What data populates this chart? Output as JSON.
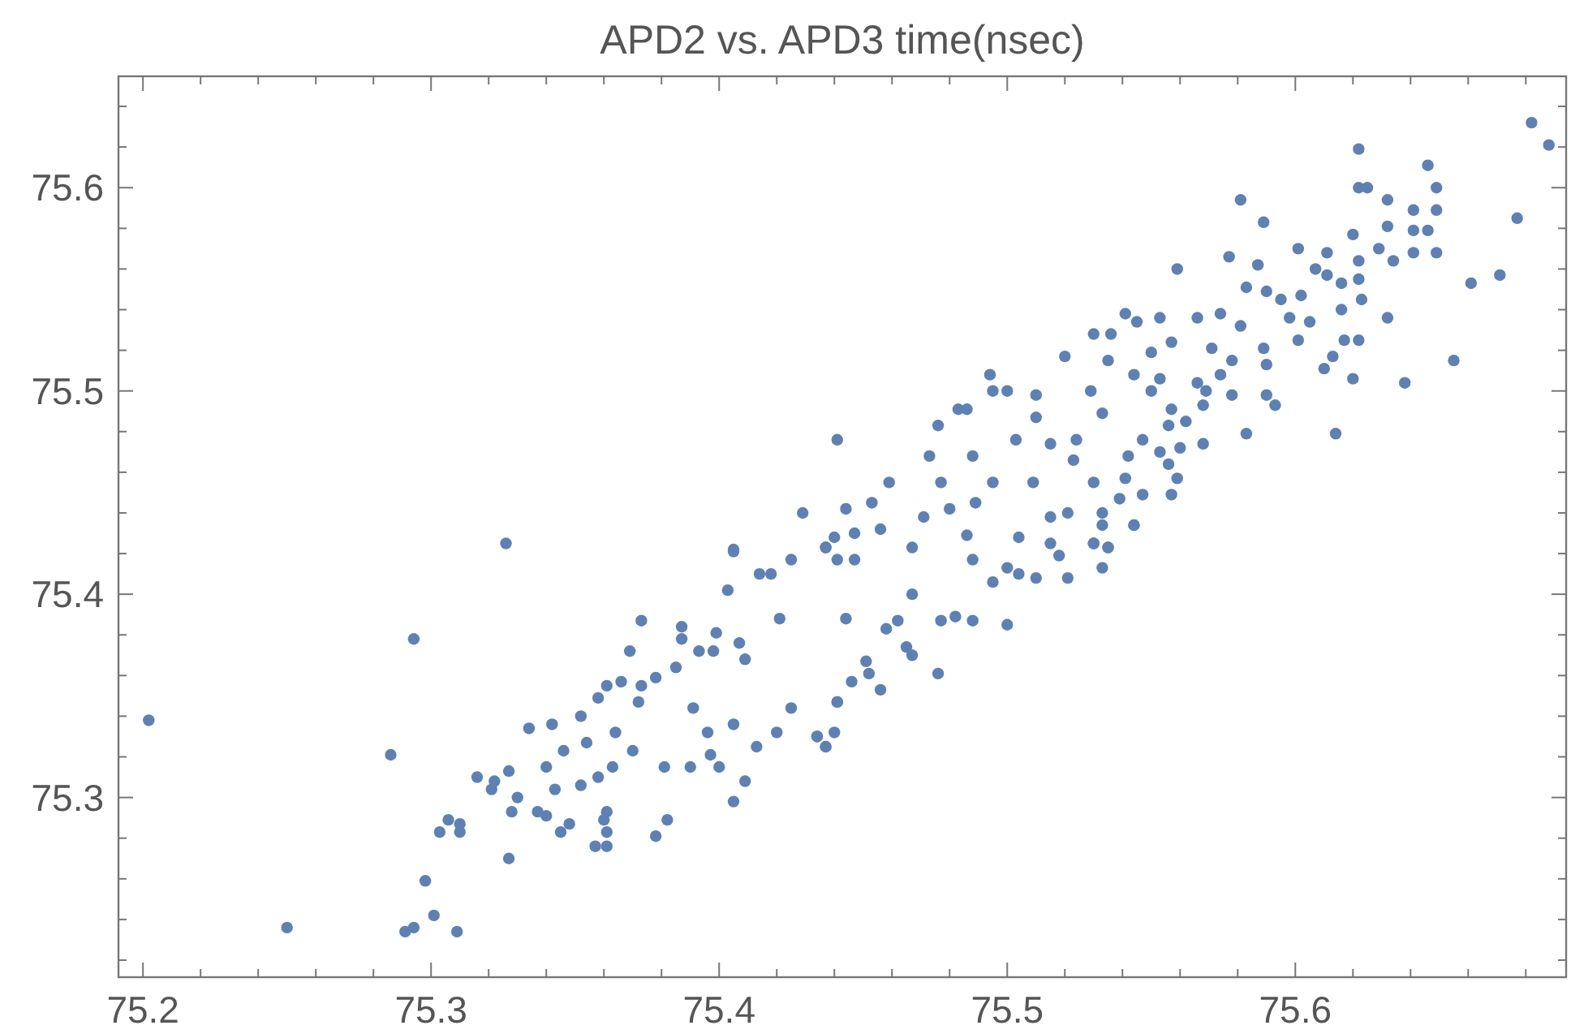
{
  "chart_data": {
    "type": "scatter",
    "title": "APD2 vs. APD3 time(nsec)",
    "xlim": [
      75.1915,
      75.694
    ],
    "ylim": [
      75.2116,
      75.6548
    ],
    "xticks": [
      75.2,
      {
        "value": 75.22,
        "label": null
      },
      {
        "value": 75.24,
        "label": null
      },
      {
        "value": 75.26,
        "label": null
      },
      {
        "value": 75.28,
        "label": null
      },
      75.3,
      {
        "value": 75.32,
        "label": null
      },
      {
        "value": 75.34,
        "label": null
      },
      {
        "value": 75.36,
        "label": null
      },
      {
        "value": 75.38,
        "label": null
      },
      75.4,
      {
        "value": 75.42,
        "label": null
      },
      {
        "value": 75.44,
        "label": null
      },
      {
        "value": 75.46,
        "label": null
      },
      {
        "value": 75.48,
        "label": null
      },
      75.5,
      {
        "value": 75.52,
        "label": null
      },
      {
        "value": 75.54,
        "label": null
      },
      {
        "value": 75.56,
        "label": null
      },
      {
        "value": 75.58,
        "label": null
      },
      75.6,
      {
        "value": 75.62,
        "label": null
      },
      {
        "value": 75.64,
        "label": null
      },
      {
        "value": 75.66,
        "label": null
      },
      {
        "value": 75.68,
        "label": null
      }
    ],
    "yticks": [
      {
        "value": 75.22,
        "label": null
      },
      {
        "value": 75.24,
        "label": null
      },
      {
        "value": 75.26,
        "label": null
      },
      {
        "value": 75.28,
        "label": null
      },
      75.3,
      {
        "value": 75.32,
        "label": null
      },
      {
        "value": 75.34,
        "label": null
      },
      {
        "value": 75.36,
        "label": null
      },
      {
        "value": 75.38,
        "label": null
      },
      75.4,
      {
        "value": 75.42,
        "label": null
      },
      {
        "value": 75.44,
        "label": null
      },
      {
        "value": 75.46,
        "label": null
      },
      {
        "value": 75.48,
        "label": null
      },
      75.5,
      {
        "value": 75.52,
        "label": null
      },
      {
        "value": 75.54,
        "label": null
      },
      {
        "value": 75.56,
        "label": null
      },
      {
        "value": 75.58,
        "label": null
      },
      75.6,
      {
        "value": 75.62,
        "label": null
      },
      {
        "value": 75.64,
        "label": null
      }
    ],
    "grid": false,
    "marker": "circle",
    "series": [
      {
        "color": "#5e81b5",
        "x": [
          75.202,
          75.25,
          75.286,
          75.294,
          75.326,
          75.291,
          75.294,
          75.301,
          75.298,
          75.309,
          75.303,
          75.306,
          75.31,
          75.31,
          75.327,
          75.316,
          75.321,
          75.322,
          75.327,
          75.33,
          75.328,
          75.334,
          75.337,
          75.34,
          75.342,
          75.34,
          75.345,
          75.348,
          75.343,
          75.346,
          75.352,
          75.354,
          75.352,
          75.357,
          75.361,
          75.36,
          75.361,
          75.361,
          75.358,
          75.361,
          75.366,
          75.363,
          75.358,
          75.364,
          75.369,
          75.373,
          75.373,
          75.372,
          75.37,
          75.378,
          75.382,
          75.378,
          75.381,
          75.387,
          75.385,
          75.39,
          75.393,
          75.391,
          75.396,
          75.397,
          75.399,
          75.403,
          75.405,
          75.405,
          75.4,
          75.409,
          75.405,
          75.409,
          75.414,
          75.418,
          75.413,
          75.42,
          75.425,
          75.425,
          75.44,
          75.437,
          75.434,
          75.441,
          75.441,
          75.387,
          75.407,
          75.421,
          75.398,
          75.444,
          75.429,
          75.405,
          75.682,
          75.688,
          75.622,
          75.622,
          75.625,
          75.646,
          75.649,
          75.632,
          75.641,
          75.649,
          75.632,
          75.641,
          75.646,
          75.641,
          75.649,
          75.629,
          75.634,
          75.62,
          75.677,
          75.671,
          75.661,
          75.655,
          75.638,
          75.632,
          75.622,
          75.622,
          75.623,
          75.622,
          75.617,
          75.62,
          75.614,
          75.613,
          75.61,
          75.616,
          75.616,
          75.611,
          75.611,
          75.607,
          75.601,
          75.581,
          75.589,
          75.577,
          75.587,
          75.583,
          75.59,
          75.602,
          75.605,
          75.601,
          75.595,
          75.598,
          75.589,
          75.59,
          75.59,
          75.593,
          75.583,
          75.578,
          75.581,
          75.574,
          75.566,
          75.571,
          75.578,
          75.574,
          75.566,
          75.569,
          75.568,
          75.568,
          75.56,
          75.562,
          75.559,
          75.553,
          75.557,
          75.541,
          75.545,
          75.53,
          75.536,
          75.55,
          75.535,
          75.544,
          75.553,
          75.55,
          75.557,
          75.556,
          75.553,
          75.556,
          75.559,
          75.557,
          75.547,
          75.544,
          75.539,
          75.541,
          75.547,
          75.542,
          75.533,
          75.529,
          75.52,
          75.51,
          75.494,
          75.5,
          75.495,
          75.483,
          75.486,
          75.476,
          75.441,
          75.473,
          75.459,
          75.453,
          75.444,
          75.515,
          75.524,
          75.51,
          75.523,
          75.53,
          75.533,
          75.53,
          75.521,
          75.515,
          75.504,
          75.509,
          75.495,
          75.488,
          75.503,
          75.477,
          75.489,
          75.48,
          75.471,
          75.456,
          75.447,
          75.437,
          75.467,
          75.486,
          75.515,
          75.535,
          75.5,
          75.476,
          75.456,
          75.441,
          75.44,
          75.437,
          75.434,
          75.467,
          75.452,
          75.446,
          75.488,
          75.482,
          75.521,
          75.533,
          75.51,
          75.544,
          75.533,
          75.495,
          75.504,
          75.518,
          75.535,
          75.53,
          75.5,
          75.488,
          75.462,
          75.477,
          75.467,
          75.447,
          75.437,
          75.458,
          75.465,
          75.451
        ],
        "values": [
          75.338,
          75.236,
          75.321,
          75.378,
          75.425,
          75.234,
          75.236,
          75.242,
          75.259,
          75.234,
          75.283,
          75.289,
          75.287,
          75.283,
          75.27,
          75.31,
          75.304,
          75.308,
          75.313,
          75.3,
          75.293,
          75.334,
          75.293,
          75.291,
          75.336,
          75.315,
          75.283,
          75.287,
          75.304,
          75.323,
          75.34,
          75.327,
          75.306,
          75.276,
          75.276,
          75.289,
          75.283,
          75.293,
          75.349,
          75.355,
          75.357,
          75.315,
          75.31,
          75.332,
          75.372,
          75.387,
          75.355,
          75.347,
          75.323,
          75.281,
          75.289,
          75.359,
          75.315,
          75.378,
          75.364,
          75.315,
          75.372,
          75.344,
          75.332,
          75.321,
          75.381,
          75.402,
          75.421,
          75.298,
          75.315,
          75.308,
          75.336,
          75.368,
          75.41,
          75.41,
          75.325,
          75.332,
          75.417,
          75.344,
          75.428,
          75.325,
          75.33,
          75.347,
          75.417,
          75.384,
          75.376,
          75.388,
          75.372,
          75.388,
          75.44,
          75.422,
          75.632,
          75.621,
          75.619,
          75.6,
          75.6,
          75.611,
          75.6,
          75.594,
          75.589,
          75.589,
          75.581,
          75.579,
          75.579,
          75.568,
          75.568,
          75.57,
          75.564,
          75.577,
          75.585,
          75.557,
          75.553,
          75.515,
          75.504,
          75.536,
          75.555,
          75.564,
          75.545,
          75.525,
          75.525,
          75.506,
          75.479,
          75.517,
          75.511,
          75.54,
          75.553,
          75.568,
          75.557,
          75.56,
          75.57,
          75.594,
          75.583,
          75.566,
          75.562,
          75.551,
          75.549,
          75.547,
          75.534,
          75.525,
          75.545,
          75.536,
          75.521,
          75.513,
          75.498,
          75.493,
          75.479,
          75.498,
          75.532,
          75.538,
          75.536,
          75.521,
          75.515,
          75.508,
          75.504,
          75.5,
          75.493,
          75.474,
          75.472,
          75.485,
          75.56,
          75.536,
          75.524,
          75.538,
          75.534,
          75.528,
          75.528,
          75.519,
          75.515,
          75.508,
          75.506,
          75.5,
          75.491,
          75.483,
          75.47,
          75.464,
          75.457,
          75.449,
          75.449,
          75.434,
          75.447,
          75.457,
          75.476,
          75.468,
          75.489,
          75.5,
          75.517,
          75.498,
          75.508,
          75.5,
          75.5,
          75.491,
          75.491,
          75.483,
          75.476,
          75.468,
          75.455,
          75.445,
          75.442,
          75.474,
          75.476,
          75.487,
          75.466,
          75.455,
          75.44,
          75.425,
          75.44,
          75.438,
          75.428,
          75.455,
          75.455,
          75.468,
          75.476,
          75.455,
          75.445,
          75.442,
          75.438,
          75.432,
          75.43,
          75.423,
          75.423,
          75.429,
          75.425,
          75.423,
          75.385,
          75.361,
          75.353,
          75.347,
          75.332,
          75.325,
          75.33,
          75.37,
          75.361,
          75.357,
          75.387,
          75.389,
          75.408,
          75.413,
          75.408,
          75.434,
          75.434,
          75.406,
          75.41,
          75.419,
          75.423,
          75.425,
          75.413,
          75.417,
          75.387,
          75.387,
          75.4,
          75.417,
          75.423,
          75.383,
          75.374,
          75.367
        ]
      }
    ]
  }
}
